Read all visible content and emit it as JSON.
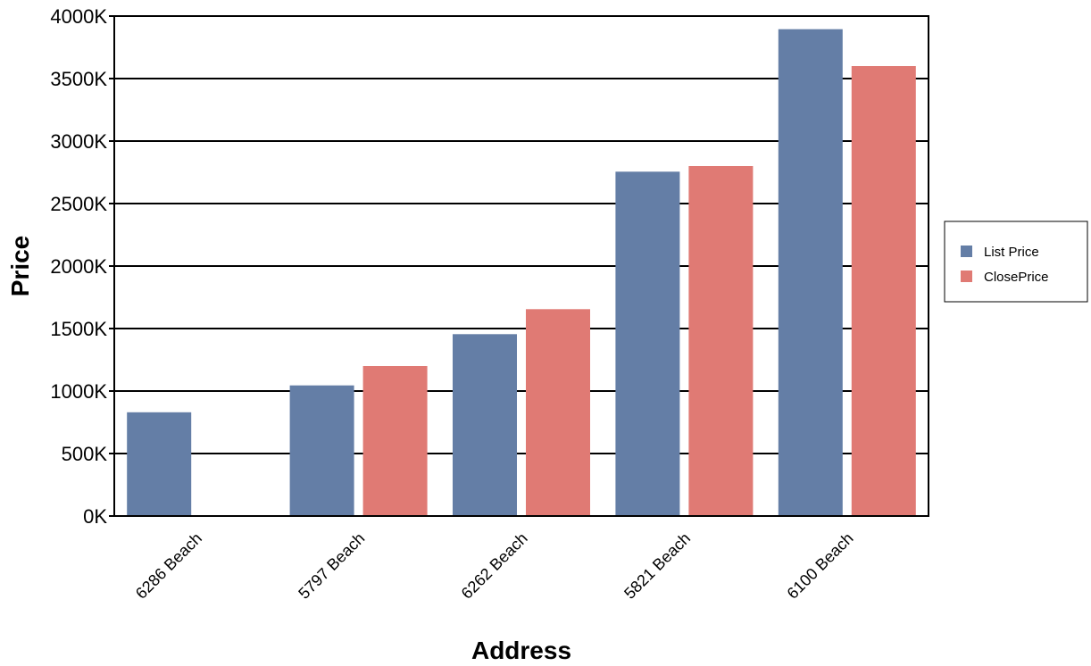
{
  "chart_data": {
    "type": "bar",
    "title": "",
    "xlabel": "Address",
    "ylabel": "Price",
    "categories": [
      "6286 Beach",
      "5797 Beach",
      "6262 Beach",
      "5821 Beach",
      "6100 Beach"
    ],
    "series": [
      {
        "name": "List Price",
        "color": "#647ea6",
        "values": [
          830,
          1045,
          1455,
          2755,
          3895
        ]
      },
      {
        "name": "ClosePrice",
        "color": "#e07a74",
        "values": [
          null,
          1200,
          1655,
          2800,
          3600
        ]
      }
    ],
    "ylim": [
      0,
      4000
    ],
    "yticks": [
      0,
      500,
      1000,
      1500,
      2000,
      2500,
      3000,
      3500,
      4000
    ],
    "ytick_labels": [
      "0K",
      "500K",
      "1000K",
      "1500K",
      "2000K",
      "2500K",
      "3000K",
      "3500K",
      "4000K"
    ],
    "grid": true,
    "legend_position": "right"
  }
}
